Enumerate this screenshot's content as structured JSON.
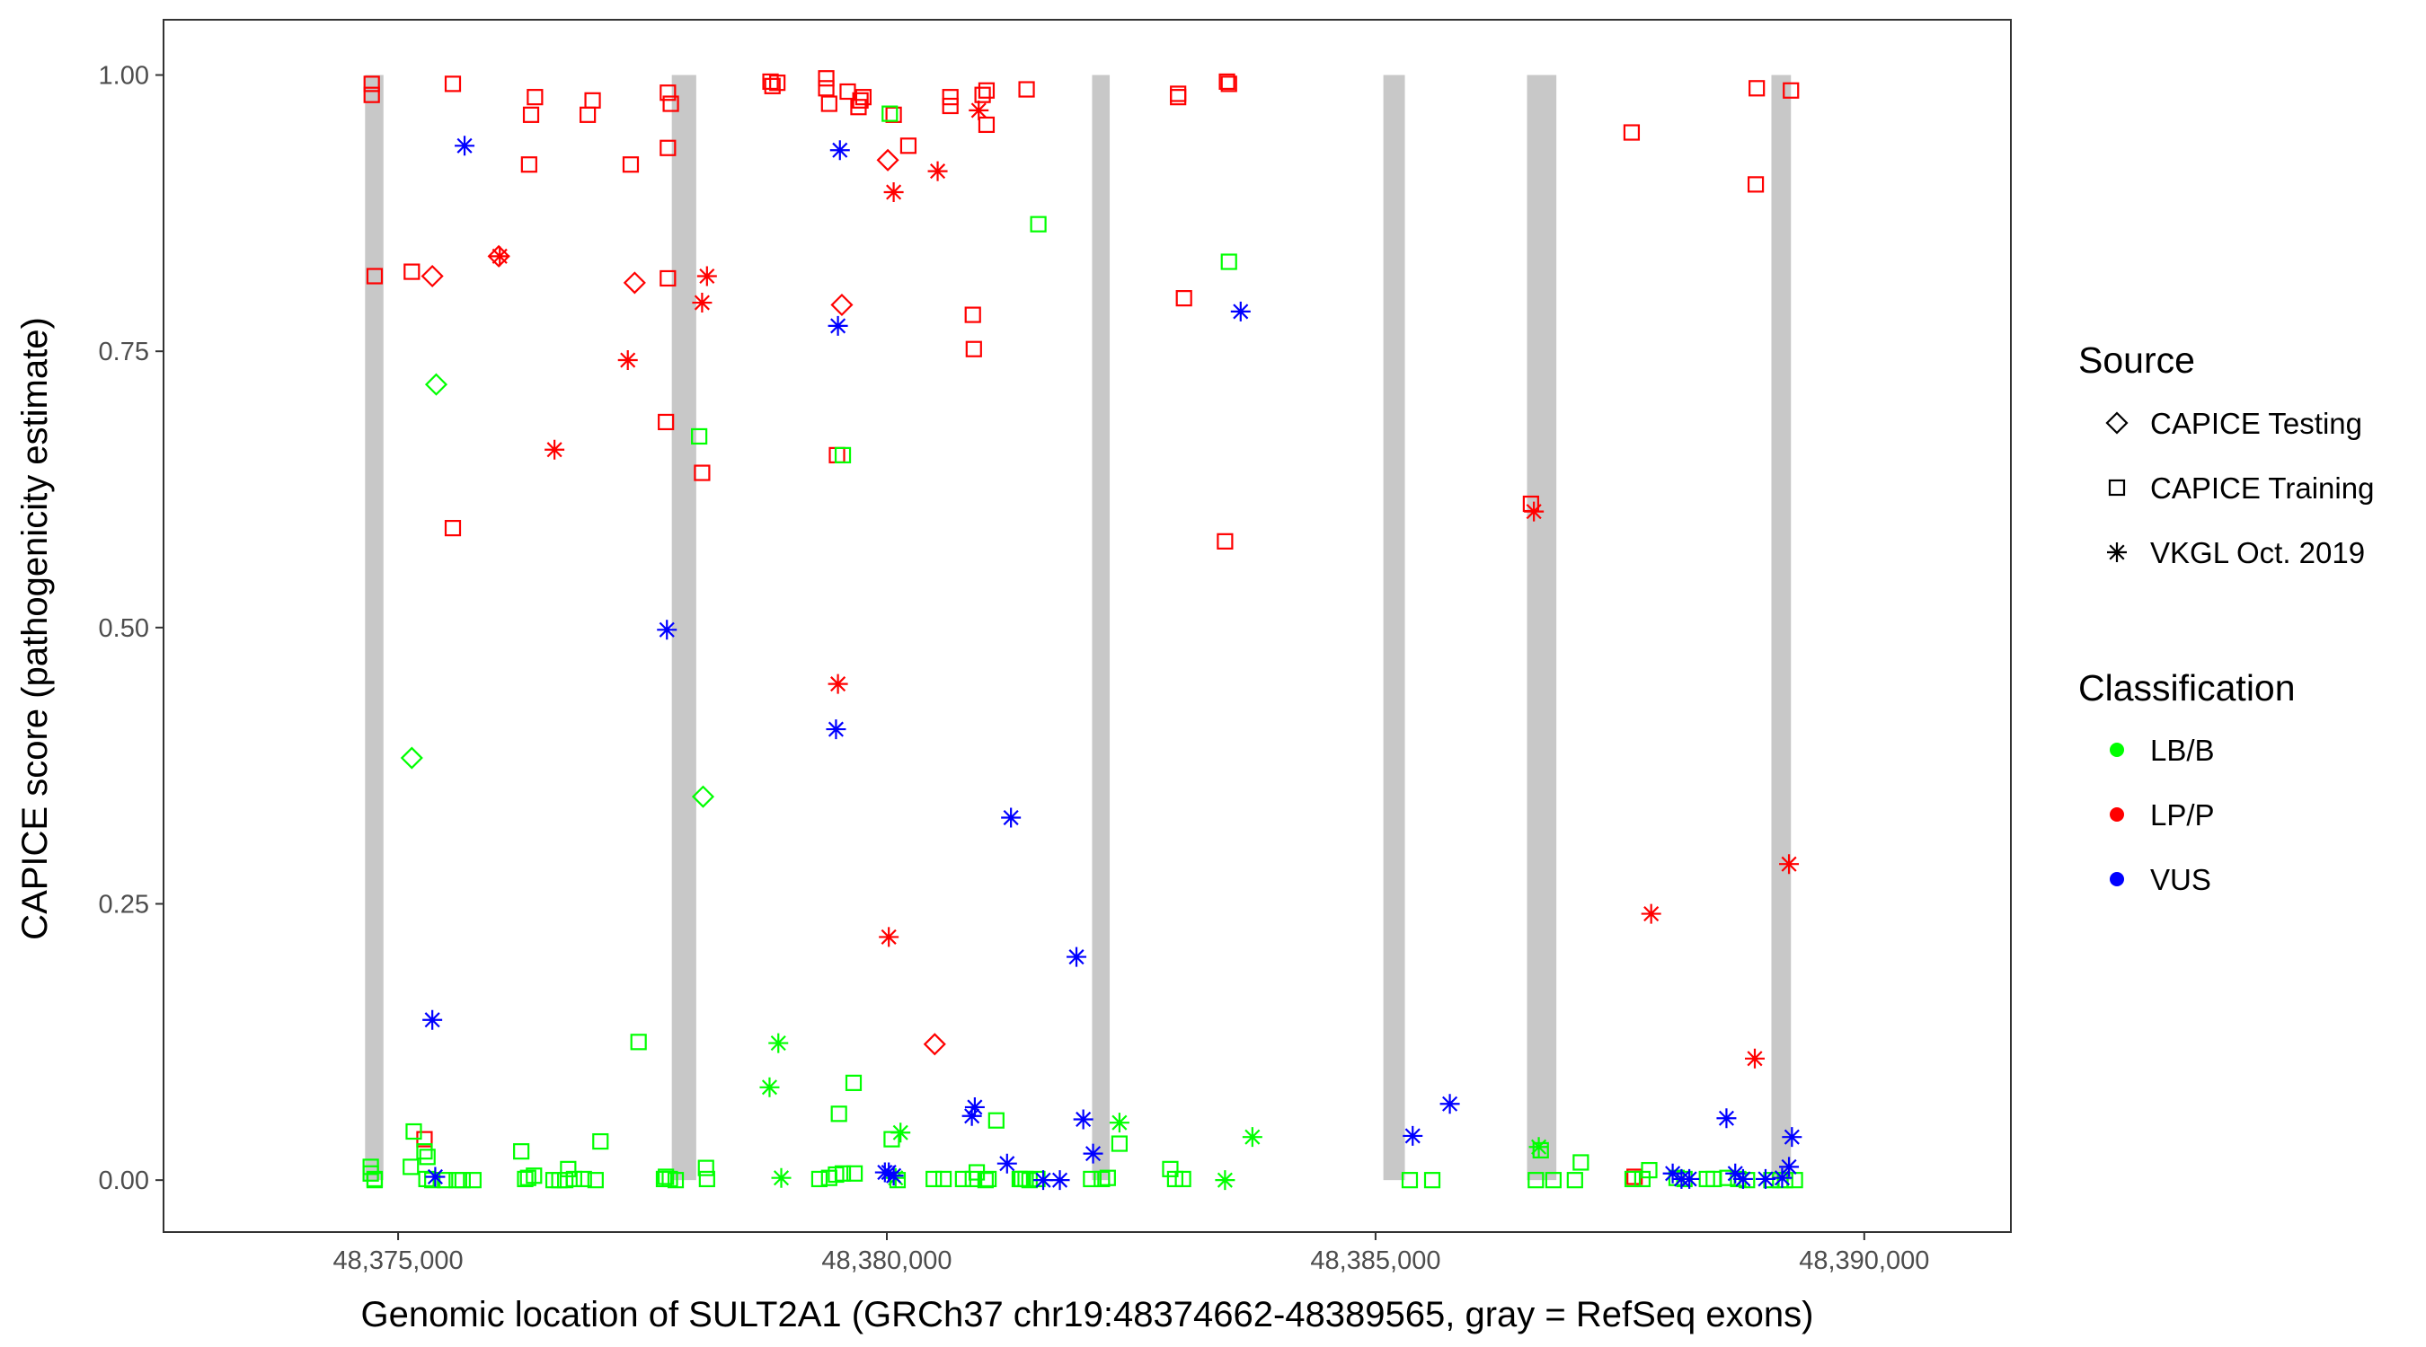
{
  "chart_data": {
    "type": "scatter",
    "xlabel": "Genomic location of SULT2A1 (GRCh37 chr19:48374662-48389565, gray = RefSeq exons)",
    "ylabel": "CAPICE score (pathogenicity estimate)",
    "xlim": [
      48372600,
      48391500
    ],
    "ylim": [
      -0.047,
      1.05
    ],
    "x_ticks": [
      48375000,
      48380000,
      48385000,
      48390000
    ],
    "x_tick_labels": [
      "48,375,000",
      "48,380,000",
      "48,385,000",
      "48,390,000"
    ],
    "y_ticks": [
      0,
      0.25,
      0.5,
      0.75,
      1
    ],
    "y_tick_labels": [
      "0.00",
      "0.25",
      "0.50",
      "0.75",
      "1.00"
    ],
    "grid": false,
    "exons": [
      [
        48374662,
        48374850
      ],
      [
        48377800,
        48378050
      ],
      [
        48382100,
        48382280
      ],
      [
        48385080,
        48385300
      ],
      [
        48386550,
        48386850
      ],
      [
        48389050,
        48389250
      ]
    ],
    "legend": {
      "placement": "right",
      "source_title": "Source",
      "source_items": [
        {
          "label": "CAPICE Testing",
          "shape": "diamond"
        },
        {
          "label": "CAPICE Training",
          "shape": "square"
        },
        {
          "label": "VKGL Oct. 2019",
          "shape": "star"
        }
      ],
      "class_title": "Classification",
      "class_items": [
        {
          "label": "LB/B",
          "color": "#00ff00"
        },
        {
          "label": "LP/P",
          "color": "#ff0000"
        },
        {
          "label": "VUS",
          "color": "#0000ff"
        }
      ]
    },
    "series": [
      {
        "source": "CAPICE Training",
        "classification": "LP/P",
        "shape": "square",
        "color": "#ff0000",
        "points": [
          [
            48374730,
            0.992
          ],
          [
            48374730,
            0.982
          ],
          [
            48374760,
            0.818
          ],
          [
            48375140,
            0.822
          ],
          [
            48375270,
            0.037
          ],
          [
            48375560,
            0.992
          ],
          [
            48375560,
            0.59
          ],
          [
            48376340,
            0.919
          ],
          [
            48376360,
            0.964
          ],
          [
            48376400,
            0.98
          ],
          [
            48376940,
            0.964
          ],
          [
            48376990,
            0.977
          ],
          [
            48377380,
            0.919
          ],
          [
            48377760,
            0.984
          ],
          [
            48377760,
            0.934
          ],
          [
            48377760,
            0.816
          ],
          [
            48377740,
            0.686
          ],
          [
            48377790,
            0.974
          ],
          [
            48378110,
            0.64
          ],
          [
            48378810,
            0.994
          ],
          [
            48378830,
            0.99
          ],
          [
            48378880,
            0.993
          ],
          [
            48379380,
            0.988
          ],
          [
            48379380,
            0.997
          ],
          [
            48379410,
            0.974
          ],
          [
            48379490,
            0.656
          ],
          [
            48379600,
            0.985
          ],
          [
            48379710,
            0.971
          ],
          [
            48379730,
            0.977
          ],
          [
            48379760,
            0.98
          ],
          [
            48380070,
            0.964
          ],
          [
            48380220,
            0.936
          ],
          [
            48380650,
            0.972
          ],
          [
            48380650,
            0.98
          ],
          [
            48380880,
            0.783
          ],
          [
            48380890,
            0.752
          ],
          [
            48380980,
            0.982
          ],
          [
            48381020,
            0.986
          ],
          [
            48381020,
            0.955
          ],
          [
            48381430,
            0.987
          ],
          [
            48382980,
            0.983
          ],
          [
            48382980,
            0.98
          ],
          [
            48383040,
            0.798
          ],
          [
            48383480,
            0.994
          ],
          [
            48383500,
            0.992
          ],
          [
            48383460,
            0.578
          ],
          [
            48386590,
            0.612
          ],
          [
            48387620,
            0.948
          ],
          [
            48387650,
            0.003
          ],
          [
            48388900,
            0.988
          ],
          [
            48388890,
            0.901
          ],
          [
            48389250,
            0.986
          ]
        ]
      },
      {
        "source": "CAPICE Testing",
        "classification": "LP/P",
        "shape": "diamond",
        "color": "#ff0000",
        "points": [
          [
            48375350,
            0.818
          ],
          [
            48376030,
            0.836
          ],
          [
            48377420,
            0.812
          ],
          [
            48379540,
            0.792
          ],
          [
            48380010,
            0.923
          ],
          [
            48380490,
            0.123
          ]
        ]
      },
      {
        "source": "VKGL Oct. 2019",
        "classification": "LP/P",
        "shape": "star",
        "color": "#ff0000",
        "points": [
          [
            48376040,
            0.836
          ],
          [
            48376600,
            0.661
          ],
          [
            48377350,
            0.742
          ],
          [
            48378110,
            0.794
          ],
          [
            48378160,
            0.818
          ],
          [
            48379500,
            0.449
          ],
          [
            48380020,
            0.22
          ],
          [
            48380070,
            0.894
          ],
          [
            48380520,
            0.913
          ],
          [
            48380940,
            0.968
          ],
          [
            48386620,
            0.605
          ],
          [
            48387820,
            0.241
          ],
          [
            48388880,
            0.11
          ],
          [
            48389230,
            0.286
          ]
        ]
      },
      {
        "source": "CAPICE Training",
        "classification": "LB/B",
        "shape": "square",
        "color": "#00ff00",
        "points": [
          [
            48374720,
            0.012
          ],
          [
            48374720,
            0.006
          ],
          [
            48374760,
            0.001
          ],
          [
            48374760,
            0.0
          ],
          [
            48375160,
            0.044
          ],
          [
            48375130,
            0.012
          ],
          [
            48375270,
            0.026
          ],
          [
            48375300,
            0.021
          ],
          [
            48375290,
            0.001
          ],
          [
            48375350,
            0.0
          ],
          [
            48375480,
            0.0
          ],
          [
            48375600,
            0.0
          ],
          [
            48375660,
            0.0
          ],
          [
            48375770,
            0.0
          ],
          [
            48376260,
            0.026
          ],
          [
            48376300,
            0.001
          ],
          [
            48376330,
            0.002
          ],
          [
            48376390,
            0.004
          ],
          [
            48376590,
            0.0
          ],
          [
            48376650,
            0.0
          ],
          [
            48376710,
            0.0
          ],
          [
            48376740,
            0.01
          ],
          [
            48376800,
            0.001
          ],
          [
            48376900,
            0.001
          ],
          [
            48377020,
            0.0
          ],
          [
            48377070,
            0.035
          ],
          [
            48377460,
            0.125
          ],
          [
            48377720,
            0.001
          ],
          [
            48377740,
            0.003
          ],
          [
            48377780,
            0.001
          ],
          [
            48377840,
            0.0
          ],
          [
            48378080,
            0.673
          ],
          [
            48378150,
            0.011
          ],
          [
            48378160,
            0.001
          ],
          [
            48379550,
            0.656
          ],
          [
            48379660,
            0.088
          ],
          [
            48379510,
            0.06
          ],
          [
            48379310,
            0.001
          ],
          [
            48379410,
            0.002
          ],
          [
            48379480,
            0.005
          ],
          [
            48379550,
            0.006
          ],
          [
            48379670,
            0.006
          ],
          [
            48380050,
            0.037
          ],
          [
            48380030,
            0.965
          ],
          [
            48380110,
            0.0
          ],
          [
            48380480,
            0.001
          ],
          [
            48380580,
            0.001
          ],
          [
            48380780,
            0.001
          ],
          [
            48380880,
            0.001
          ],
          [
            48380920,
            0.007
          ],
          [
            48381010,
            0.0
          ],
          [
            48381040,
            0.001
          ],
          [
            48381120,
            0.054
          ],
          [
            48381360,
            0.001
          ],
          [
            48381380,
            0.001
          ],
          [
            48381420,
            0.001
          ],
          [
            48381460,
            0.0
          ],
          [
            48381540,
            0.001
          ],
          [
            48381550,
            0.865
          ],
          [
            48382090,
            0.001
          ],
          [
            48382200,
            0.001
          ],
          [
            48382260,
            0.002
          ],
          [
            48382380,
            0.033
          ],
          [
            48382900,
            0.01
          ],
          [
            48382950,
            0.001
          ],
          [
            48383030,
            0.001
          ],
          [
            48383500,
            0.831
          ],
          [
            48385350,
            0.0
          ],
          [
            48385580,
            0.0
          ],
          [
            48386640,
            0.0
          ],
          [
            48386690,
            0.027
          ],
          [
            48386820,
            0.0
          ],
          [
            48387040,
            0.0
          ],
          [
            48387100,
            0.016
          ],
          [
            48387630,
            0.001
          ],
          [
            48387730,
            0.001
          ],
          [
            48387800,
            0.009
          ],
          [
            48388080,
            0.002
          ],
          [
            48388160,
            0.001
          ],
          [
            48388390,
            0.001
          ],
          [
            48388460,
            0.001
          ],
          [
            48388600,
            0.002
          ],
          [
            48388710,
            0.001
          ],
          [
            48388800,
            0.0
          ],
          [
            48389050,
            0.0
          ],
          [
            48389140,
            0.0
          ],
          [
            48389190,
            0.0
          ],
          [
            48389290,
            0.0
          ]
        ]
      },
      {
        "source": "CAPICE Testing",
        "classification": "LB/B",
        "shape": "diamond",
        "color": "#00ff00",
        "points": [
          [
            48375140,
            0.382
          ],
          [
            48375390,
            0.72
          ],
          [
            48378120,
            0.347
          ]
        ]
      },
      {
        "source": "VKGL Oct. 2019",
        "classification": "LB/B",
        "shape": "star",
        "color": "#00ff00",
        "points": [
          [
            48378800,
            0.084
          ],
          [
            48378890,
            0.124
          ],
          [
            48378920,
            0.002
          ],
          [
            48380140,
            0.043
          ],
          [
            48380090,
            0.002
          ],
          [
            48382380,
            0.052
          ],
          [
            48383460,
            0.0
          ],
          [
            48383740,
            0.039
          ],
          [
            48386670,
            0.03
          ]
        ]
      },
      {
        "source": "VKGL Oct. 2019",
        "classification": "VUS",
        "shape": "star",
        "color": "#0000ff",
        "points": [
          [
            48375680,
            0.936
          ],
          [
            48375350,
            0.145
          ],
          [
            48375380,
            0.003
          ],
          [
            48377750,
            0.498
          ],
          [
            48379520,
            0.932
          ],
          [
            48379500,
            0.773
          ],
          [
            48379480,
            0.408
          ],
          [
            48379980,
            0.007
          ],
          [
            48380020,
            0.007
          ],
          [
            48380070,
            0.004
          ],
          [
            48380870,
            0.058
          ],
          [
            48380900,
            0.066
          ],
          [
            48381230,
            0.015
          ],
          [
            48381270,
            0.328
          ],
          [
            48381600,
            0.0
          ],
          [
            48381770,
            0.0
          ],
          [
            48381940,
            0.202
          ],
          [
            48382010,
            0.055
          ],
          [
            48382110,
            0.024
          ],
          [
            48383620,
            0.786
          ],
          [
            48385380,
            0.04
          ],
          [
            48385760,
            0.069
          ],
          [
            48388040,
            0.006
          ],
          [
            48388130,
            0.001
          ],
          [
            48388210,
            0.001
          ],
          [
            48388590,
            0.056
          ],
          [
            48388680,
            0.006
          ],
          [
            48388760,
            0.001
          ],
          [
            48388990,
            0.001
          ],
          [
            48389160,
            0.002
          ],
          [
            48389230,
            0.012
          ],
          [
            48389260,
            0.039
          ]
        ]
      }
    ]
  }
}
